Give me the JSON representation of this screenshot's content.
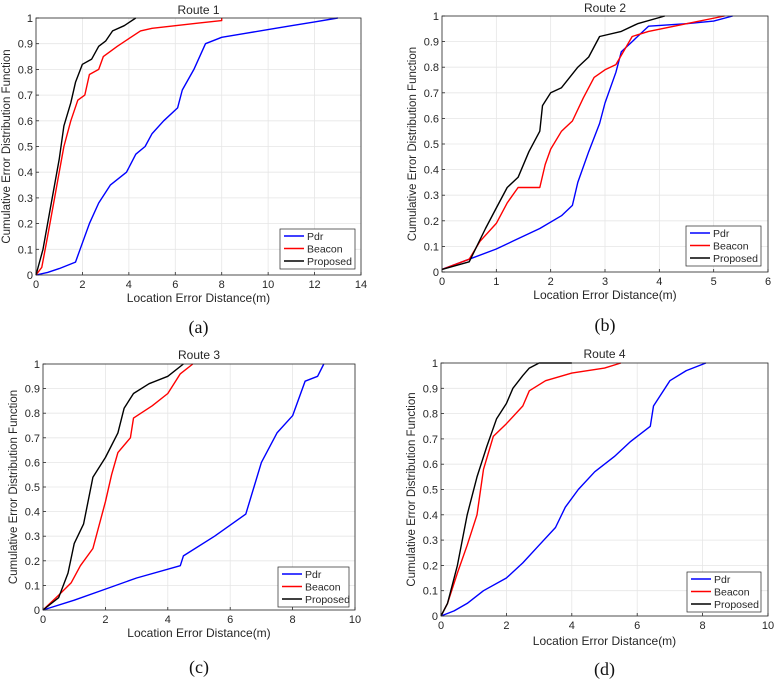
{
  "chart_data": [
    {
      "type": "line",
      "title": "Route 1",
      "caption": "(a)",
      "xlabel": "Location Error Distance(m)",
      "ylabel": "Cumulative Error Distribution Function",
      "xlim": [
        0,
        14
      ],
      "ylim": [
        0,
        1
      ],
      "xticks": [
        0,
        2,
        4,
        6,
        8,
        10,
        12,
        14
      ],
      "yticks": [
        0,
        0.1,
        0.2,
        0.3,
        0.4,
        0.5,
        0.6,
        0.7,
        0.8,
        0.9,
        1
      ],
      "grid": true,
      "legend": "bottom-right",
      "series": [
        {
          "name": "Pdr",
          "color": "#0000ff",
          "points": [
            [
              0,
              0
            ],
            [
              0.5,
              0.01
            ],
            [
              1,
              0.025
            ],
            [
              1.7,
              0.05
            ],
            [
              1.9,
              0.1
            ],
            [
              2.3,
              0.2
            ],
            [
              2.7,
              0.28
            ],
            [
              3.2,
              0.35
            ],
            [
              3.9,
              0.4
            ],
            [
              4.3,
              0.47
            ],
            [
              4.7,
              0.5
            ],
            [
              5,
              0.55
            ],
            [
              5.5,
              0.6
            ],
            [
              6.1,
              0.65
            ],
            [
              6.3,
              0.72
            ],
            [
              6.8,
              0.8
            ],
            [
              7.3,
              0.9
            ],
            [
              8,
              0.925
            ],
            [
              9,
              0.94
            ],
            [
              10,
              0.955
            ],
            [
              11,
              0.97
            ],
            [
              12,
              0.985
            ],
            [
              13,
              1
            ]
          ]
        },
        {
          "name": "Beacon",
          "color": "#ff0000",
          "points": [
            [
              0,
              0
            ],
            [
              0.25,
              0.03
            ],
            [
              0.5,
              0.15
            ],
            [
              0.8,
              0.3
            ],
            [
              1,
              0.4
            ],
            [
              1.2,
              0.5
            ],
            [
              1.5,
              0.6
            ],
            [
              1.8,
              0.68
            ],
            [
              2.1,
              0.7
            ],
            [
              2.3,
              0.78
            ],
            [
              2.7,
              0.8
            ],
            [
              2.9,
              0.85
            ],
            [
              3.5,
              0.89
            ],
            [
              4,
              0.92
            ],
            [
              4.5,
              0.95
            ],
            [
              5,
              0.96
            ],
            [
              6,
              0.97
            ],
            [
              7,
              0.98
            ],
            [
              8,
              0.99
            ],
            [
              8,
              1
            ]
          ]
        },
        {
          "name": "Proposed",
          "color": "#000000",
          "points": [
            [
              0,
              0
            ],
            [
              0.3,
              0.1
            ],
            [
              0.6,
              0.25
            ],
            [
              1,
              0.45
            ],
            [
              1.2,
              0.58
            ],
            [
              1.5,
              0.67
            ],
            [
              1.7,
              0.75
            ],
            [
              2,
              0.82
            ],
            [
              2.4,
              0.84
            ],
            [
              2.7,
              0.89
            ],
            [
              3,
              0.91
            ],
            [
              3.3,
              0.95
            ],
            [
              3.8,
              0.97
            ],
            [
              4.3,
              1
            ]
          ]
        }
      ]
    },
    {
      "type": "line",
      "title": "Route 2",
      "caption": "(b)",
      "xlabel": "Location Error Distance(m)",
      "ylabel": "Cumulative Error Distribution Function",
      "xlim": [
        0,
        6
      ],
      "ylim": [
        0,
        1
      ],
      "xticks": [
        0,
        1,
        2,
        3,
        4,
        5,
        6
      ],
      "yticks": [
        0,
        0.1,
        0.2,
        0.3,
        0.4,
        0.5,
        0.6,
        0.7,
        0.8,
        0.9,
        1
      ],
      "grid": true,
      "legend": "bottom-right",
      "series": [
        {
          "name": "Pdr",
          "color": "#0000ff",
          "points": [
            [
              0,
              0.01
            ],
            [
              0.5,
              0.05
            ],
            [
              1,
              0.09
            ],
            [
              1.3,
              0.12
            ],
            [
              1.8,
              0.17
            ],
            [
              2.2,
              0.22
            ],
            [
              2.4,
              0.26
            ],
            [
              2.5,
              0.35
            ],
            [
              2.7,
              0.47
            ],
            [
              2.9,
              0.58
            ],
            [
              3.0,
              0.66
            ],
            [
              3.2,
              0.78
            ],
            [
              3.3,
              0.86
            ],
            [
              3.5,
              0.9
            ],
            [
              3.8,
              0.96
            ],
            [
              4.5,
              0.97
            ],
            [
              5,
              0.98
            ],
            [
              5.35,
              1
            ]
          ]
        },
        {
          "name": "Beacon",
          "color": "#ff0000",
          "points": [
            [
              0,
              0.01
            ],
            [
              0.5,
              0.05
            ],
            [
              0.7,
              0.12
            ],
            [
              1,
              0.19
            ],
            [
              1.2,
              0.27
            ],
            [
              1.4,
              0.33
            ],
            [
              1.8,
              0.33
            ],
            [
              1.9,
              0.42
            ],
            [
              2,
              0.48
            ],
            [
              2.2,
              0.55
            ],
            [
              2.4,
              0.59
            ],
            [
              2.6,
              0.68
            ],
            [
              2.8,
              0.76
            ],
            [
              3,
              0.79
            ],
            [
              3.2,
              0.81
            ],
            [
              3.5,
              0.92
            ],
            [
              3.8,
              0.94
            ],
            [
              4.5,
              0.97
            ],
            [
              5.2,
              1
            ]
          ]
        },
        {
          "name": "Proposed",
          "color": "#000000",
          "points": [
            [
              0,
              0.01
            ],
            [
              0.5,
              0.04
            ],
            [
              0.8,
              0.17
            ],
            [
              1.0,
              0.25
            ],
            [
              1.2,
              0.33
            ],
            [
              1.4,
              0.37
            ],
            [
              1.6,
              0.47
            ],
            [
              1.8,
              0.55
            ],
            [
              1.85,
              0.65
            ],
            [
              2,
              0.7
            ],
            [
              2.2,
              0.72
            ],
            [
              2.5,
              0.8
            ],
            [
              2.7,
              0.84
            ],
            [
              2.9,
              0.92
            ],
            [
              3.3,
              0.94
            ],
            [
              3.6,
              0.97
            ],
            [
              4.1,
              1
            ]
          ]
        }
      ]
    },
    {
      "type": "line",
      "title": "Route 3",
      "caption": "(c)",
      "xlabel": "Location Error Distance(m)",
      "ylabel": "Cumulative Error Distribution Function",
      "xlim": [
        0,
        10
      ],
      "ylim": [
        0,
        1
      ],
      "xticks": [
        0,
        2,
        4,
        6,
        8,
        10
      ],
      "yticks": [
        0,
        0.1,
        0.2,
        0.3,
        0.4,
        0.5,
        0.6,
        0.7,
        0.8,
        0.9,
        1
      ],
      "grid": true,
      "legend": "bottom-right",
      "series": [
        {
          "name": "Pdr",
          "color": "#0000ff",
          "points": [
            [
              0,
              0
            ],
            [
              1,
              0.04
            ],
            [
              2,
              0.085
            ],
            [
              3,
              0.13
            ],
            [
              4.4,
              0.18
            ],
            [
              4.5,
              0.22
            ],
            [
              5.5,
              0.3
            ],
            [
              6.5,
              0.39
            ],
            [
              7,
              0.6
            ],
            [
              7.5,
              0.72
            ],
            [
              8,
              0.79
            ],
            [
              8.4,
              0.93
            ],
            [
              8.8,
              0.95
            ],
            [
              9,
              1
            ]
          ]
        },
        {
          "name": "Beacon",
          "color": "#ff0000",
          "points": [
            [
              0,
              0
            ],
            [
              0.5,
              0.06
            ],
            [
              0.9,
              0.11
            ],
            [
              1.2,
              0.18
            ],
            [
              1.6,
              0.25
            ],
            [
              2,
              0.44
            ],
            [
              2.2,
              0.55
            ],
            [
              2.4,
              0.64
            ],
            [
              2.8,
              0.7
            ],
            [
              2.9,
              0.78
            ],
            [
              3.5,
              0.83
            ],
            [
              4,
              0.88
            ],
            [
              4.4,
              0.96
            ],
            [
              4.8,
              1
            ]
          ]
        },
        {
          "name": "Proposed",
          "color": "#000000",
          "points": [
            [
              0,
              0
            ],
            [
              0.5,
              0.05
            ],
            [
              0.8,
              0.15
            ],
            [
              1,
              0.27
            ],
            [
              1.3,
              0.35
            ],
            [
              1.6,
              0.54
            ],
            [
              2,
              0.62
            ],
            [
              2.4,
              0.72
            ],
            [
              2.6,
              0.82
            ],
            [
              2.9,
              0.88
            ],
            [
              3.4,
              0.92
            ],
            [
              4,
              0.95
            ],
            [
              4.5,
              1
            ]
          ]
        }
      ]
    },
    {
      "type": "line",
      "title": "Route 4",
      "caption": "(d)",
      "xlabel": "Location Error Distance(m)",
      "ylabel": "Cumulative Error Distribution Function",
      "xlim": [
        0,
        10
      ],
      "ylim": [
        0,
        1
      ],
      "xticks": [
        0,
        2,
        4,
        6,
        8,
        10
      ],
      "yticks": [
        0,
        0.1,
        0.2,
        0.3,
        0.4,
        0.5,
        0.6,
        0.7,
        0.8,
        0.9,
        1
      ],
      "grid": true,
      "legend": "bottom-right",
      "series": [
        {
          "name": "Pdr",
          "color": "#0000ff",
          "points": [
            [
              0,
              0
            ],
            [
              0.4,
              0.02
            ],
            [
              0.8,
              0.05
            ],
            [
              1.3,
              0.1
            ],
            [
              2,
              0.15
            ],
            [
              2.5,
              0.21
            ],
            [
              3,
              0.28
            ],
            [
              3.5,
              0.35
            ],
            [
              3.8,
              0.43
            ],
            [
              4.2,
              0.5
            ],
            [
              4.7,
              0.57
            ],
            [
              5.3,
              0.63
            ],
            [
              5.8,
              0.69
            ],
            [
              6.4,
              0.75
            ],
            [
              6.5,
              0.83
            ],
            [
              7,
              0.93
            ],
            [
              7.5,
              0.97
            ],
            [
              8.1,
              1
            ]
          ]
        },
        {
          "name": "Beacon",
          "color": "#ff0000",
          "points": [
            [
              0,
              0
            ],
            [
              0.2,
              0.05
            ],
            [
              0.5,
              0.17
            ],
            [
              0.8,
              0.28
            ],
            [
              1.1,
              0.4
            ],
            [
              1.3,
              0.58
            ],
            [
              1.6,
              0.71
            ],
            [
              2,
              0.76
            ],
            [
              2.5,
              0.83
            ],
            [
              2.7,
              0.89
            ],
            [
              3.2,
              0.93
            ],
            [
              4,
              0.96
            ],
            [
              5,
              0.98
            ],
            [
              5.5,
              1
            ]
          ]
        },
        {
          "name": "Proposed",
          "color": "#000000",
          "points": [
            [
              0,
              0
            ],
            [
              0.2,
              0.05
            ],
            [
              0.5,
              0.2
            ],
            [
              0.8,
              0.4
            ],
            [
              1.1,
              0.55
            ],
            [
              1.4,
              0.67
            ],
            [
              1.7,
              0.78
            ],
            [
              2,
              0.84
            ],
            [
              2.2,
              0.9
            ],
            [
              2.5,
              0.95
            ],
            [
              2.7,
              0.98
            ],
            [
              3,
              1
            ],
            [
              4,
              1
            ]
          ]
        }
      ]
    }
  ]
}
